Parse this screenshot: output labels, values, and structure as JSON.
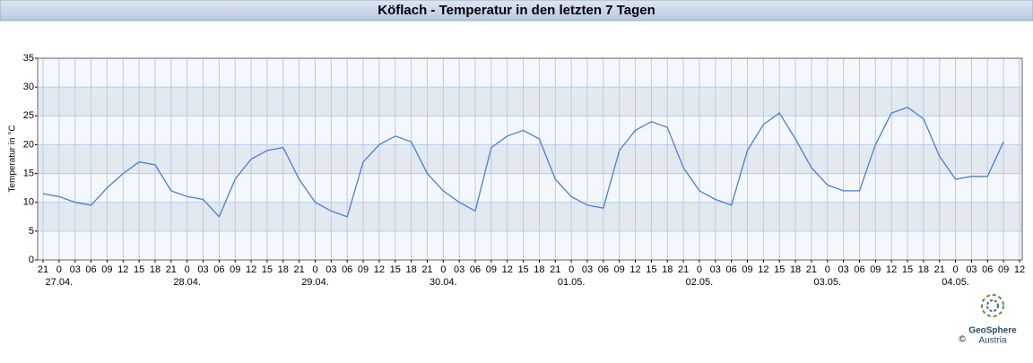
{
  "chart_data": {
    "type": "line",
    "title": "Köflach - Temperatur in den letzten 7 Tagen",
    "ylabel": "Temperatur in °C",
    "categories": [
      "21",
      "0",
      "03",
      "06",
      "09",
      "12",
      "15",
      "18",
      "21",
      "0",
      "03",
      "06",
      "09",
      "12",
      "15",
      "18",
      "21",
      "0",
      "03",
      "06",
      "09",
      "12",
      "15",
      "18",
      "21",
      "0",
      "03",
      "06",
      "09",
      "12",
      "15",
      "18",
      "21",
      "0",
      "03",
      "06",
      "09",
      "12",
      "15",
      "18",
      "21",
      "0",
      "03",
      "06",
      "09",
      "12",
      "15",
      "18",
      "21",
      "0",
      "03",
      "06",
      "09",
      "12",
      "15",
      "18",
      "21",
      "0",
      "03",
      "06",
      "09",
      "12"
    ],
    "date_labels": [
      null,
      "27.04.",
      null,
      null,
      null,
      null,
      null,
      null,
      null,
      "28.04.",
      null,
      null,
      null,
      null,
      null,
      null,
      null,
      "29.04.",
      null,
      null,
      null,
      null,
      null,
      null,
      null,
      "30.04.",
      null,
      null,
      null,
      null,
      null,
      null,
      null,
      "01.05.",
      null,
      null,
      null,
      null,
      null,
      null,
      null,
      "02.05.",
      null,
      null,
      null,
      null,
      null,
      null,
      null,
      "03.05.",
      null,
      null,
      null,
      null,
      null,
      null,
      null,
      "04.05.",
      null,
      null,
      null,
      null
    ],
    "series": [
      {
        "name": "Temperatur",
        "color": "#4a7fd4",
        "values": [
          11.5,
          11,
          10,
          9.5,
          12.5,
          15,
          17,
          16.5,
          12,
          11,
          10.5,
          7.5,
          14,
          17.5,
          19,
          19.5,
          14,
          10,
          8.5,
          7.5,
          17,
          20,
          21.5,
          20.5,
          15,
          12,
          10,
          8.5,
          19.5,
          21.5,
          22.5,
          21,
          14,
          11,
          9.5,
          9,
          19,
          22.5,
          24,
          23,
          16,
          12,
          10.5,
          9.5,
          19,
          23.5,
          25.5,
          21,
          16,
          13,
          12,
          12,
          20,
          25.5,
          26.5,
          24.5,
          18,
          14,
          14.5,
          14.5,
          20.5,
          null
        ]
      }
    ],
    "ylim": [
      0,
      35
    ],
    "yticks": [
      0,
      5,
      10,
      15,
      20,
      25,
      30,
      35
    ],
    "grid": true,
    "credit": {
      "name": "GeoSphere",
      "sub": "Austria",
      "copyright": "©"
    }
  }
}
